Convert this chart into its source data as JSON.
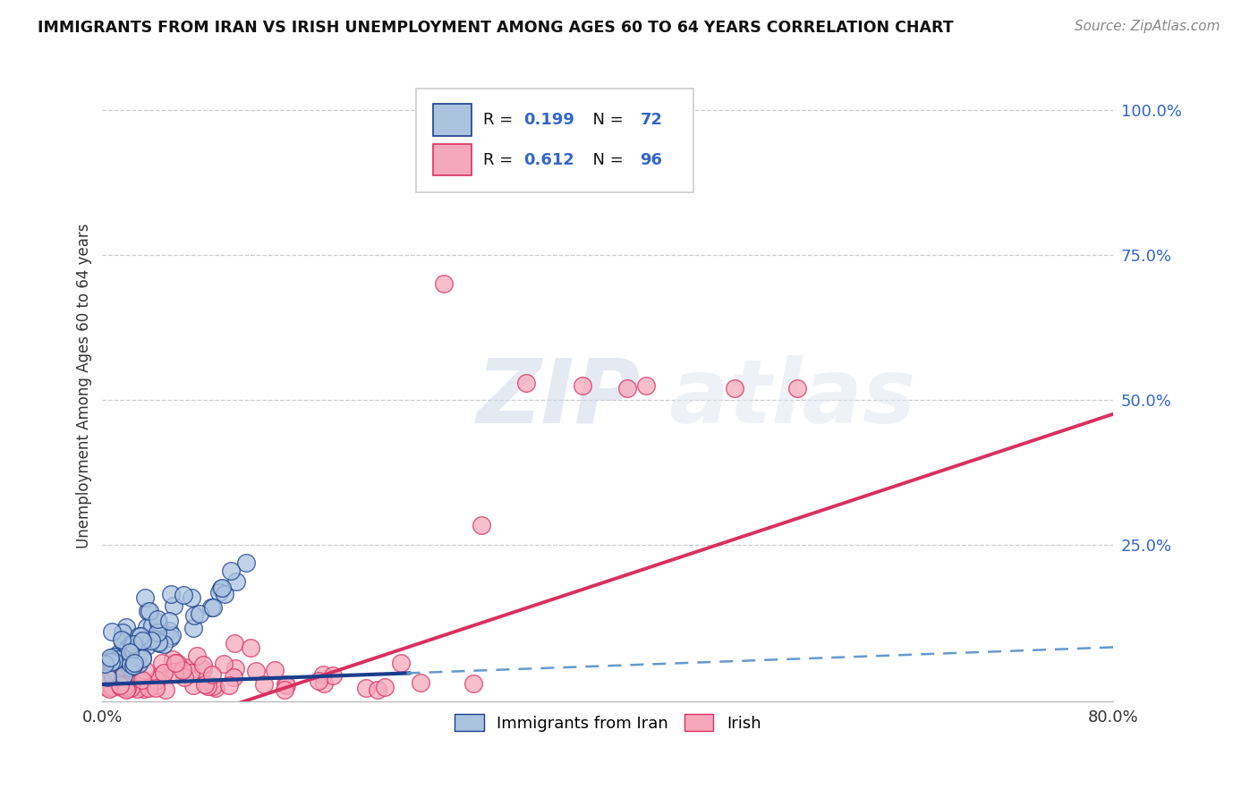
{
  "title": "IMMIGRANTS FROM IRAN VS IRISH UNEMPLOYMENT AMONG AGES 60 TO 64 YEARS CORRELATION CHART",
  "source": "Source: ZipAtlas.com",
  "ylabel": "Unemployment Among Ages 60 to 64 years",
  "xlim": [
    0.0,
    0.8
  ],
  "ylim": [
    -0.02,
    1.07
  ],
  "yticks_right": [
    0.25,
    0.5,
    0.75,
    1.0
  ],
  "yticklabels_right": [
    "25.0%",
    "50.0%",
    "75.0%",
    "100.0%"
  ],
  "iran_R": 0.199,
  "iran_N": 72,
  "irish_R": 0.612,
  "irish_N": 96,
  "iran_color": "#aac4e0",
  "irish_color": "#f5a8bc",
  "iran_line_color": "#1a3e8c",
  "irish_line_color": "#d93060",
  "legend_label_iran": "Immigrants from Iran",
  "legend_label_irish": "Irish",
  "watermark_zip": "ZIP",
  "watermark_atlas": "atlas",
  "r_n_color": "#3366cc",
  "text_color": "#333333"
}
